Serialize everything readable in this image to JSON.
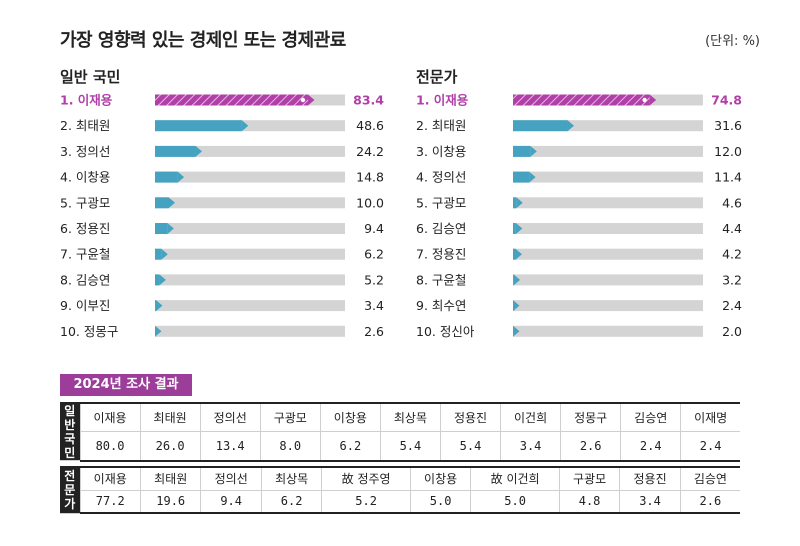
{
  "title": "가장 영향력 있는 경제인 또는 경제관료",
  "unit": "(단위: %)",
  "highlight_color": "#b03fa8",
  "bar_color": "#45a3c1",
  "track_color": "#d4d4d4",
  "chart_data": [
    {
      "type": "bar",
      "title": "일반 국민",
      "categories": [
        "1. 이재용",
        "2. 최태원",
        "3. 정의선",
        "4. 이창용",
        "5. 구광모",
        "6. 정용진",
        "7. 구윤철",
        "8. 김승연",
        "9. 이부진",
        "10. 정몽구"
      ],
      "values": [
        83.4,
        48.6,
        24.2,
        14.8,
        10.0,
        9.4,
        6.2,
        5.2,
        3.4,
        2.6
      ],
      "labels": [
        "83.4",
        "48.6",
        "24.2",
        "14.8",
        "10.0",
        "9.4",
        "6.2",
        "5.2",
        "3.4",
        "2.6"
      ],
      "ylim": [
        0,
        100
      ]
    },
    {
      "type": "bar",
      "title": "전문가",
      "categories": [
        "1. 이재용",
        "2. 최태원",
        "3. 이창용",
        "4. 정의선",
        "5. 구광모",
        "6. 김승연",
        "7. 정용진",
        "8. 구윤철",
        "9. 최수연",
        "10. 정신아"
      ],
      "values": [
        74.8,
        31.6,
        12.0,
        11.4,
        4.6,
        4.4,
        4.2,
        3.2,
        2.4,
        2.0
      ],
      "labels": [
        "74.8",
        "31.6",
        "12.0",
        "11.4",
        "4.6",
        "4.4",
        "4.2",
        "3.2",
        "2.4",
        "2.0"
      ],
      "ylim": [
        0,
        100
      ]
    }
  ],
  "survey": {
    "badge": "2024년 조사 결과",
    "public": {
      "header": "일반국민",
      "names": [
        "이재용",
        "최태원",
        "정의선",
        "구광모",
        "이창용",
        "최상목",
        "정용진",
        "이건희",
        "정몽구",
        "김승연",
        "이재명"
      ],
      "values": [
        "80.0",
        "26.0",
        "13.4",
        "8.0",
        "6.2",
        "5.4",
        "5.4",
        "3.4",
        "2.6",
        "2.4",
        "2.4"
      ]
    },
    "expert": {
      "header": "전문가",
      "names": [
        "이재용",
        "최태원",
        "정의선",
        "최상목",
        "故 정주영",
        "이창용",
        "故 이건희",
        "구광모",
        "정용진",
        "김승연"
      ],
      "values": [
        "77.2",
        "19.6",
        "9.4",
        "6.2",
        "5.2",
        "5.0",
        "5.0",
        "4.8",
        "3.4",
        "2.6"
      ]
    }
  }
}
